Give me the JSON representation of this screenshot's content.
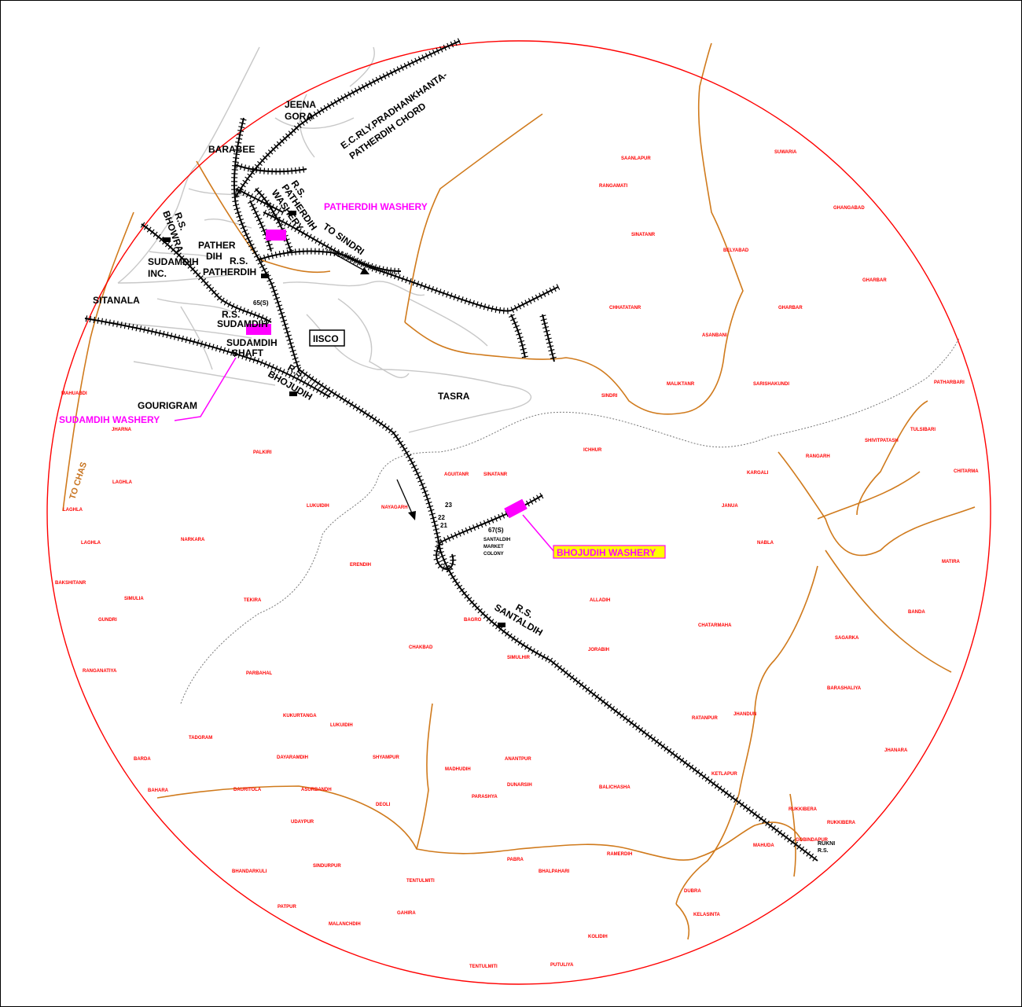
{
  "map": {
    "black_labels": {
      "jeena": "JEENA",
      "gora": "GORA",
      "barabee": "BARABEE",
      "ecrly1": "E.C.RLY.PRADHANKHANTA-",
      "ecrly2": "PATHERDIH CHORD",
      "rs_patherdih_washery1": "R.S.",
      "rs_patherdih_washery2": "PATHERDIH",
      "rs_patherdih_washery3": "WASHERY",
      "to_sindri": "TO SINDRI",
      "rs_bhowra1": "R.S.",
      "rs_bhowra2": "BHOWRA",
      "pather": "PATHER",
      "dih": "DIH",
      "sudamdih_inc1": "SUDAMDIH",
      "sudamdih_inc2": "INC.",
      "rs_patherdih1": "R.S.",
      "rs_patherdih2": "PATHERDIH",
      "sitanala": "SITANALA",
      "km65": "65(S)",
      "rs_sudamdih1": "R.S.",
      "rs_sudamdih2": "SUDAMDIH",
      "iisco": "IISCO",
      "sudamdih_shaft1": "SUDAMDIH",
      "sudamdih_shaft2": "SHAFT",
      "rs_bhojudih1": "R.S.",
      "rs_bhojudih2": "BHOJUDIH",
      "gourigram": "GOURIGRAM",
      "tasra": "TASRA",
      "km23": "23",
      "km22": "22",
      "km21": "21",
      "km67": "67(S)",
      "santaldih_colony1": "SANTALDIH",
      "santaldih_colony2": "MARKET",
      "santaldih_colony3": "COLONY",
      "rs_santaldih1": "R.S.",
      "rs_santaldih2": "SANTALDIH",
      "rukni1": "RUKNI",
      "rukni2": "R.S."
    },
    "magenta_labels": {
      "patherdih_washery": "PATHERDIH WASHERY",
      "sudamdih_washery": "SUDAMDIH WASHERY",
      "bhojudih_washery": "BHOJUDIH WASHERY"
    },
    "orange_labels": {
      "to_chas": "TO CHAS"
    },
    "villages": {
      "saanlapur": "SAANLAPUR",
      "suwaria": "SUWARIA",
      "rangamati": "RANGAMATI",
      "ghangabad": "GHANGABAD",
      "sinatanr1": "SINATANR",
      "belyabad": "BELYABAD",
      "gharbar1": "GHARBAR",
      "chhatatanr": "CHHATATANR",
      "gharbar2": "GHARBAR",
      "asanbani": "ASANBANI",
      "maliktanr": "MALIKTANR",
      "sarishakundi": "SARISHAKUNDI",
      "patharbari": "PATHARBARI",
      "sindri": "SINDRI",
      "mahuabdi": "MAHUABDI",
      "jharna": "JHARNA",
      "ichhur": "ICHHUR",
      "shivitpatash": "SHIVITPATASH",
      "tulsibari": "TULSIBARI",
      "palkiri": "PALKIRI",
      "aguitanr": "AGUITANR",
      "sinatanr2": "SINATANR",
      "rangarh": "RANGARH",
      "kargali": "KARGALI",
      "chitarma": "CHITARMA",
      "laghla1": "LAGHLA",
      "lukuidih1": "LUKUIDIH",
      "nayagarh": "NAYAGARH",
      "janua": "JANUA",
      "laghla2": "LAGHLA",
      "laghla3": "LAGHLA",
      "narkara": "NARKARA",
      "nabla": "NABLA",
      "matira": "MATIRA",
      "erendih": "ERENDIH",
      "bakshitanr": "BAKSHITANR",
      "simulia": "SIMULIA",
      "tekira": "TEKIRA",
      "alladih": "ALLADIH",
      "banda": "BANDA",
      "gundri": "GUNDRI",
      "bagro": "BAGRO",
      "chatarmaha": "CHATARMAHA",
      "sagarka": "SAGARKA",
      "chakbad": "CHAKBAD",
      "jorabih": "JORABIH",
      "simulhir": "SIMULHIR",
      "ranganatiya": "RANGANATIYA",
      "parbahal": "PARBAHAL",
      "barashaliya": "BARASHALIYA",
      "kukurtanga": "KUKURTANGA",
      "lukuidih2": "LUKUIDIH",
      "ratanpur": "RATANPUR",
      "jhandun": "JHANDUN",
      "tadgram": "TADGRAM",
      "barda": "BARDA",
      "dayaramdih": "DAYARAMDIH",
      "shyampur": "SHYAMPUR",
      "anantpur": "ANANTPUR",
      "madhudih": "MADHUDIH",
      "jhanara": "JHANARA",
      "dunarsih": "DUNARSIH",
      "ketlapur": "KETLAPUR",
      "bahara": "BAHARA",
      "dauritola": "DAURITOLA",
      "asurbandh": "ASURBANDH",
      "balichasha": "BALICHASHA",
      "parashya": "PARASHYA",
      "deoli": "DEOLI",
      "rukkibera1": "RUKKIBERA",
      "rukkibera2": "RUKKIBERA",
      "udaypur": "UDAYPUR",
      "mahuda": "MAHUDA",
      "gobindapur": "GOBINDAPUR",
      "ramerdih": "RAMERDIH",
      "pabra": "PABRA",
      "bhalpahari": "BHALPAHARI",
      "bhandarkuli": "BHANDARKULI",
      "sindurpur": "SINDURPUR",
      "tentulmiti1": "TENTULMITI",
      "dubra": "DUBRA",
      "patpur": "PATPUR",
      "gahira": "GAHIRA",
      "kelasinta": "KELASINTA",
      "malanchdih": "MALANCHDIH",
      "kolidih": "KOLIDIH",
      "tentulmiti2": "TENTULMITI",
      "putuliya": "PUTULIYA"
    },
    "colors": {
      "boundary": "#ff0000",
      "road": "#d07a1c",
      "rail": "#000000",
      "washery": "#ff00ff",
      "village": "#ff0000",
      "path": "#c8c8c8"
    }
  }
}
